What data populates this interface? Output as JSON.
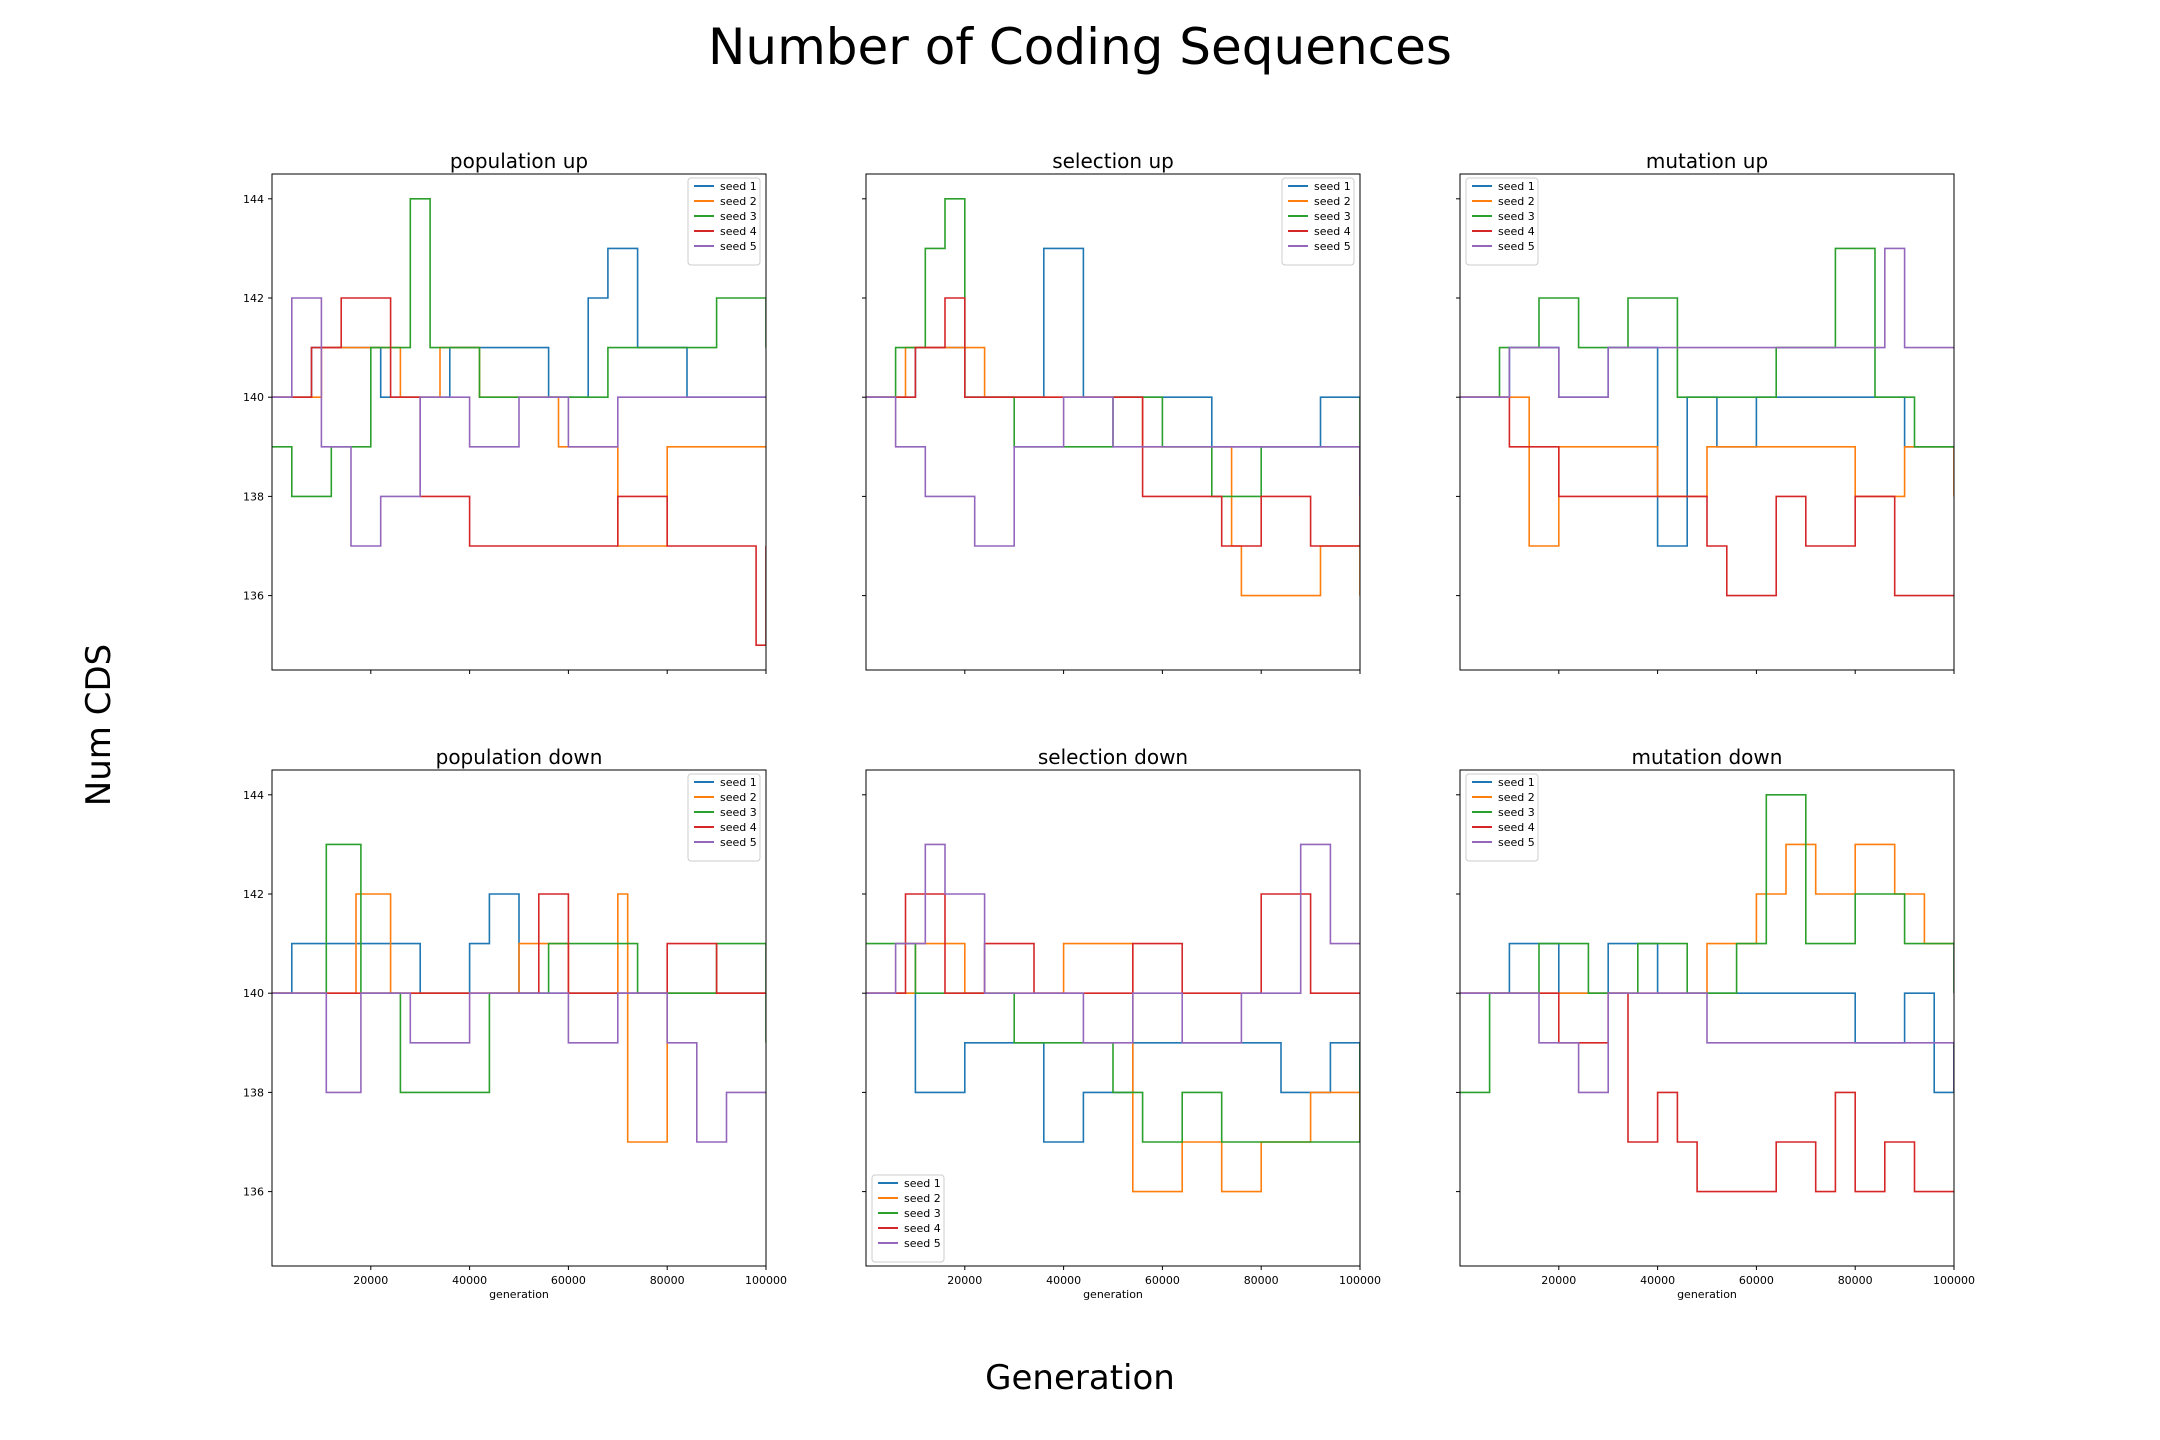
{
  "figure": {
    "title": "Number of Coding Sequences",
    "xlabel": "Generation",
    "ylabel": "Num CDS"
  },
  "colors": {
    "seed 1": "#1f77b4",
    "seed 2": "#ff7f0e",
    "seed 3": "#2ca02c",
    "seed 4": "#d62728",
    "seed 5": "#9467bd"
  },
  "chart_data": [
    {
      "type": "line",
      "title": "population up",
      "xlabel": "",
      "ylabel": "",
      "xlim": [
        0,
        100000
      ],
      "ylim": [
        134.5,
        144.5
      ],
      "yticks": [
        136,
        138,
        140,
        142,
        144
      ],
      "xticks": [
        20000,
        40000,
        60000,
        80000,
        100000
      ],
      "legend": "top-right",
      "series": [
        {
          "name": "seed 1",
          "x": [
            0,
            8000,
            22000,
            36000,
            48000,
            56000,
            64000,
            68000,
            74000,
            84000,
            92000,
            100000
          ],
          "y": [
            140,
            141,
            140,
            141,
            141,
            140,
            142,
            143,
            141,
            140,
            140,
            140
          ]
        },
        {
          "name": "seed 2",
          "x": [
            0,
            10000,
            26000,
            34000,
            42000,
            50000,
            58000,
            64000,
            70000,
            80000,
            92000,
            100000
          ],
          "y": [
            140,
            141,
            140,
            141,
            140,
            140,
            139,
            139,
            137,
            139,
            139,
            139
          ]
        },
        {
          "name": "seed 3",
          "x": [
            0,
            4000,
            12000,
            20000,
            28000,
            32000,
            42000,
            56000,
            68000,
            80000,
            90000,
            100000
          ],
          "y": [
            139,
            138,
            139,
            141,
            144,
            141,
            140,
            140,
            141,
            141,
            142,
            141
          ]
        },
        {
          "name": "seed 4",
          "x": [
            0,
            8000,
            14000,
            18000,
            24000,
            30000,
            40000,
            50000,
            60000,
            70000,
            80000,
            90000,
            98000,
            100000
          ],
          "y": [
            140,
            141,
            142,
            142,
            140,
            138,
            137,
            137,
            137,
            138,
            137,
            137,
            135,
            137
          ]
        },
        {
          "name": "seed 5",
          "x": [
            0,
            4000,
            10000,
            16000,
            22000,
            30000,
            40000,
            50000,
            60000,
            70000,
            80000,
            90000,
            100000
          ],
          "y": [
            140,
            142,
            139,
            137,
            138,
            140,
            139,
            140,
            139,
            140,
            140,
            140,
            140
          ]
        }
      ]
    },
    {
      "type": "line",
      "title": "selection up",
      "xlabel": "",
      "ylabel": "",
      "xlim": [
        0,
        100000
      ],
      "ylim": [
        134.5,
        144.5
      ],
      "yticks": [
        136,
        138,
        140,
        142,
        144
      ],
      "xticks": [
        20000,
        40000,
        60000,
        80000,
        100000
      ],
      "legend": "top-right",
      "series": [
        {
          "name": "seed 1",
          "x": [
            0,
            10000,
            20000,
            30000,
            36000,
            44000,
            56000,
            70000,
            84000,
            92000,
            100000
          ],
          "y": [
            140,
            141,
            140,
            140,
            143,
            140,
            140,
            139,
            139,
            140,
            140
          ]
        },
        {
          "name": "seed 2",
          "x": [
            0,
            8000,
            16000,
            24000,
            40000,
            56000,
            66000,
            74000,
            76000,
            84000,
            92000,
            100000
          ],
          "y": [
            140,
            141,
            141,
            140,
            140,
            139,
            139,
            137,
            136,
            136,
            137,
            136
          ]
        },
        {
          "name": "seed 3",
          "x": [
            0,
            6000,
            12000,
            16000,
            20000,
            30000,
            40000,
            50000,
            60000,
            70000,
            80000,
            90000,
            100000
          ],
          "y": [
            140,
            141,
            143,
            144,
            140,
            139,
            139,
            140,
            139,
            138,
            139,
            139,
            140
          ]
        },
        {
          "name": "seed 4",
          "x": [
            0,
            10000,
            16000,
            20000,
            30000,
            40000,
            50000,
            56000,
            64000,
            72000,
            80000,
            90000,
            100000
          ],
          "y": [
            140,
            141,
            142,
            140,
            140,
            140,
            140,
            138,
            138,
            137,
            138,
            137,
            139
          ]
        },
        {
          "name": "seed 5",
          "x": [
            0,
            6000,
            12000,
            20000,
            22000,
            30000,
            40000,
            50000,
            60000,
            70000,
            80000,
            90000,
            100000
          ],
          "y": [
            140,
            139,
            138,
            138,
            137,
            139,
            140,
            139,
            139,
            139,
            139,
            139,
            138
          ]
        }
      ]
    },
    {
      "type": "line",
      "title": "mutation up",
      "xlabel": "",
      "ylabel": "",
      "xlim": [
        0,
        100000
      ],
      "ylim": [
        134.5,
        144.5
      ],
      "yticks": [
        136,
        138,
        140,
        142,
        144
      ],
      "xticks": [
        20000,
        40000,
        60000,
        80000,
        100000
      ],
      "legend": "top-left",
      "series": [
        {
          "name": "seed 1",
          "x": [
            0,
            10000,
            20000,
            30000,
            40000,
            46000,
            52000,
            60000,
            70000,
            80000,
            90000,
            100000
          ],
          "y": [
            140,
            141,
            140,
            141,
            137,
            140,
            139,
            140,
            140,
            140,
            139,
            139
          ]
        },
        {
          "name": "seed 2",
          "x": [
            0,
            8000,
            14000,
            20000,
            30000,
            40000,
            50000,
            60000,
            70000,
            80000,
            90000,
            100000
          ],
          "y": [
            140,
            140,
            137,
            139,
            139,
            138,
            139,
            139,
            139,
            138,
            139,
            138
          ]
        },
        {
          "name": "seed 3",
          "x": [
            0,
            8000,
            16000,
            24000,
            34000,
            44000,
            54000,
            64000,
            76000,
            84000,
            92000,
            100000
          ],
          "y": [
            140,
            141,
            142,
            141,
            142,
            140,
            140,
            141,
            143,
            140,
            139,
            139
          ]
        },
        {
          "name": "seed 4",
          "x": [
            0,
            10000,
            20000,
            30000,
            40000,
            50000,
            54000,
            64000,
            70000,
            80000,
            88000,
            92000,
            100000
          ],
          "y": [
            140,
            139,
            138,
            138,
            138,
            137,
            136,
            138,
            137,
            138,
            136,
            136,
            136
          ]
        },
        {
          "name": "seed 5",
          "x": [
            0,
            10000,
            20000,
            30000,
            40000,
            50000,
            60000,
            70000,
            80000,
            86000,
            90000,
            100000
          ],
          "y": [
            140,
            141,
            140,
            141,
            141,
            141,
            141,
            141,
            141,
            143,
            141,
            141
          ]
        }
      ]
    },
    {
      "type": "line",
      "title": "population down",
      "xlabel": "generation",
      "ylabel": "",
      "xlim": [
        0,
        100000
      ],
      "ylim": [
        134.5,
        144.5
      ],
      "yticks": [
        136,
        138,
        140,
        142,
        144
      ],
      "xticks": [
        20000,
        40000,
        60000,
        80000,
        100000
      ],
      "legend": "top-right",
      "series": [
        {
          "name": "seed 1",
          "x": [
            0,
            4000,
            10000,
            20000,
            30000,
            40000,
            44000,
            50000,
            60000,
            70000,
            80000,
            90000,
            100000
          ],
          "y": [
            140,
            141,
            141,
            141,
            140,
            141,
            142,
            140,
            140,
            140,
            140,
            140,
            140
          ]
        },
        {
          "name": "seed 2",
          "x": [
            0,
            10000,
            17000,
            24000,
            36000,
            50000,
            60000,
            70000,
            72000,
            80000,
            90000,
            100000
          ],
          "y": [
            140,
            140,
            142,
            140,
            140,
            141,
            140,
            142,
            137,
            140,
            140,
            140
          ]
        },
        {
          "name": "seed 3",
          "x": [
            0,
            8000,
            11000,
            18000,
            26000,
            34000,
            44000,
            56000,
            66000,
            74000,
            82000,
            90000,
            100000
          ],
          "y": [
            140,
            140,
            143,
            140,
            138,
            138,
            140,
            141,
            141,
            140,
            140,
            141,
            139
          ]
        },
        {
          "name": "seed 4",
          "x": [
            0,
            10000,
            20000,
            30000,
            40000,
            54000,
            60000,
            70000,
            80000,
            90000,
            100000
          ],
          "y": [
            140,
            140,
            140,
            140,
            140,
            142,
            140,
            140,
            141,
            140,
            140
          ]
        },
        {
          "name": "seed 5",
          "x": [
            0,
            6000,
            11000,
            18000,
            28000,
            40000,
            50000,
            60000,
            70000,
            80000,
            86000,
            92000,
            100000
          ],
          "y": [
            140,
            140,
            138,
            140,
            139,
            140,
            140,
            139,
            140,
            139,
            137,
            138,
            138
          ]
        }
      ]
    },
    {
      "type": "line",
      "title": "selection down",
      "xlabel": "generation",
      "ylabel": "",
      "xlim": [
        0,
        100000
      ],
      "ylim": [
        134.5,
        144.5
      ],
      "yticks": [
        136,
        138,
        140,
        142,
        144
      ],
      "xticks": [
        20000,
        40000,
        60000,
        80000,
        100000
      ],
      "legend": "bottom-left",
      "series": [
        {
          "name": "seed 1",
          "x": [
            0,
            10000,
            20000,
            30000,
            36000,
            44000,
            54000,
            64000,
            74000,
            84000,
            94000,
            100000
          ],
          "y": [
            140,
            138,
            139,
            139,
            137,
            138,
            139,
            139,
            139,
            138,
            139,
            138
          ]
        },
        {
          "name": "seed 2",
          "x": [
            0,
            10000,
            20000,
            30000,
            40000,
            46000,
            54000,
            64000,
            72000,
            80000,
            90000,
            100000
          ],
          "y": [
            140,
            141,
            140,
            140,
            141,
            141,
            136,
            137,
            136,
            137,
            138,
            137
          ]
        },
        {
          "name": "seed 3",
          "x": [
            0,
            10000,
            20000,
            30000,
            40000,
            50000,
            56000,
            64000,
            72000,
            80000,
            90000,
            100000
          ],
          "y": [
            141,
            140,
            140,
            139,
            139,
            138,
            137,
            138,
            137,
            137,
            137,
            139
          ]
        },
        {
          "name": "seed 4",
          "x": [
            0,
            8000,
            16000,
            24000,
            34000,
            44000,
            54000,
            64000,
            72000,
            80000,
            90000,
            100000
          ],
          "y": [
            140,
            142,
            140,
            141,
            140,
            140,
            141,
            140,
            140,
            142,
            140,
            140
          ]
        },
        {
          "name": "seed 5",
          "x": [
            0,
            6000,
            12000,
            16000,
            24000,
            34000,
            44000,
            54000,
            64000,
            76000,
            84000,
            88000,
            94000,
            100000
          ],
          "y": [
            140,
            141,
            143,
            142,
            140,
            140,
            139,
            140,
            139,
            140,
            140,
            143,
            141,
            141
          ]
        }
      ]
    },
    {
      "type": "line",
      "title": "mutation down",
      "xlabel": "generation",
      "ylabel": "",
      "xlim": [
        0,
        100000
      ],
      "ylim": [
        134.5,
        144.5
      ],
      "yticks": [
        136,
        138,
        140,
        142,
        144
      ],
      "xticks": [
        20000,
        40000,
        60000,
        80000,
        100000
      ],
      "legend": "top-left",
      "series": [
        {
          "name": "seed 1",
          "x": [
            0,
            10000,
            20000,
            30000,
            36000,
            40000,
            50000,
            60000,
            70000,
            80000,
            90000,
            96000,
            100000
          ],
          "y": [
            140,
            141,
            140,
            141,
            141,
            140,
            140,
            140,
            140,
            139,
            140,
            138,
            139
          ]
        },
        {
          "name": "seed 2",
          "x": [
            0,
            10000,
            20000,
            30000,
            40000,
            50000,
            60000,
            66000,
            72000,
            80000,
            88000,
            94000,
            100000
          ],
          "y": [
            140,
            140,
            140,
            140,
            140,
            141,
            142,
            143,
            142,
            143,
            142,
            141,
            141
          ]
        },
        {
          "name": "seed 3",
          "x": [
            0,
            6000,
            16000,
            26000,
            36000,
            46000,
            56000,
            62000,
            70000,
            80000,
            90000,
            100000
          ],
          "y": [
            138,
            140,
            141,
            140,
            141,
            140,
            141,
            144,
            141,
            142,
            141,
            140
          ]
        },
        {
          "name": "seed 4",
          "x": [
            0,
            10000,
            20000,
            30000,
            34000,
            40000,
            44000,
            48000,
            56000,
            64000,
            72000,
            76000,
            80000,
            86000,
            92000,
            100000
          ],
          "y": [
            140,
            140,
            139,
            140,
            137,
            138,
            137,
            136,
            136,
            137,
            136,
            138,
            136,
            137,
            136,
            136
          ]
        },
        {
          "name": "seed 5",
          "x": [
            0,
            8000,
            16000,
            24000,
            30000,
            40000,
            50000,
            60000,
            70000,
            80000,
            88000,
            96000,
            100000
          ],
          "y": [
            140,
            140,
            139,
            138,
            140,
            140,
            139,
            139,
            139,
            139,
            139,
            139,
            138
          ]
        }
      ]
    }
  ]
}
